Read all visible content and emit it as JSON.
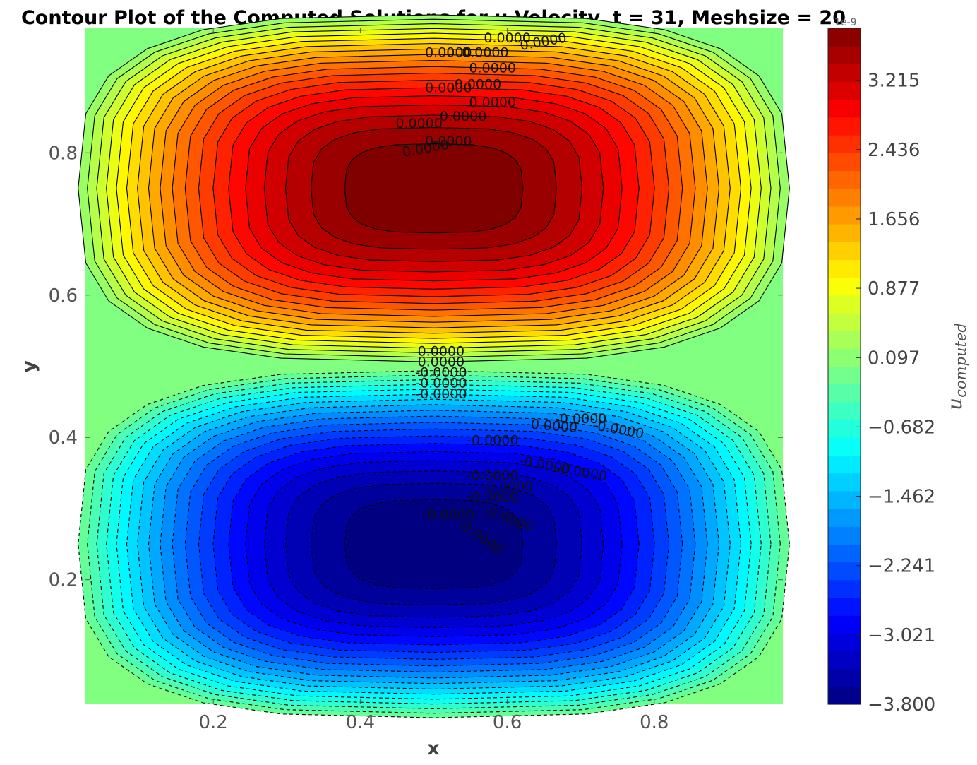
{
  "chart_data": {
    "type": "contour",
    "title": "Contour Plot of the Computed Solutions for u-Velocity, t = 31, Meshsize = 20",
    "xlabel": "x",
    "ylabel": "y",
    "xlim": [
      0.025,
      0.975
    ],
    "ylim": [
      0.025,
      0.975
    ],
    "xticks": [
      0.2,
      0.4,
      0.6,
      0.8
    ],
    "yticks": [
      0.2,
      0.4,
      0.6,
      0.8
    ],
    "xtick_labels": [
      "0.2",
      "0.4",
      "0.6",
      "0.8"
    ],
    "ytick_labels": [
      "0.2",
      "0.4",
      "0.6",
      "0.8"
    ],
    "colormap": "jet",
    "fields": [
      {
        "name": "positive-vortex",
        "center": [
          0.5,
          0.75
        ],
        "peak": 3.8
      },
      {
        "name": "negative-vortex",
        "center": [
          0.5,
          0.25
        ],
        "peak": -3.8
      }
    ],
    "levels": {
      "min": -3.8,
      "max": 3.8,
      "count": 39
    },
    "contour_label_text": "0.0000",
    "contour_label_text_neg": "-0.0000",
    "colorbar": {
      "label": "u",
      "label_sub": "computed",
      "offset_text": "1e-9",
      "ticks": [
        3.215,
        2.436,
        1.656,
        0.877,
        0.097,
        -0.682,
        -1.462,
        -2.241,
        -3.021,
        -3.8
      ],
      "tick_labels": [
        "3.215",
        "2.436",
        "1.656",
        "0.877",
        "0.097",
        "−0.682",
        "−1.462",
        "−2.241",
        "−3.021",
        "−3.800"
      ]
    }
  }
}
